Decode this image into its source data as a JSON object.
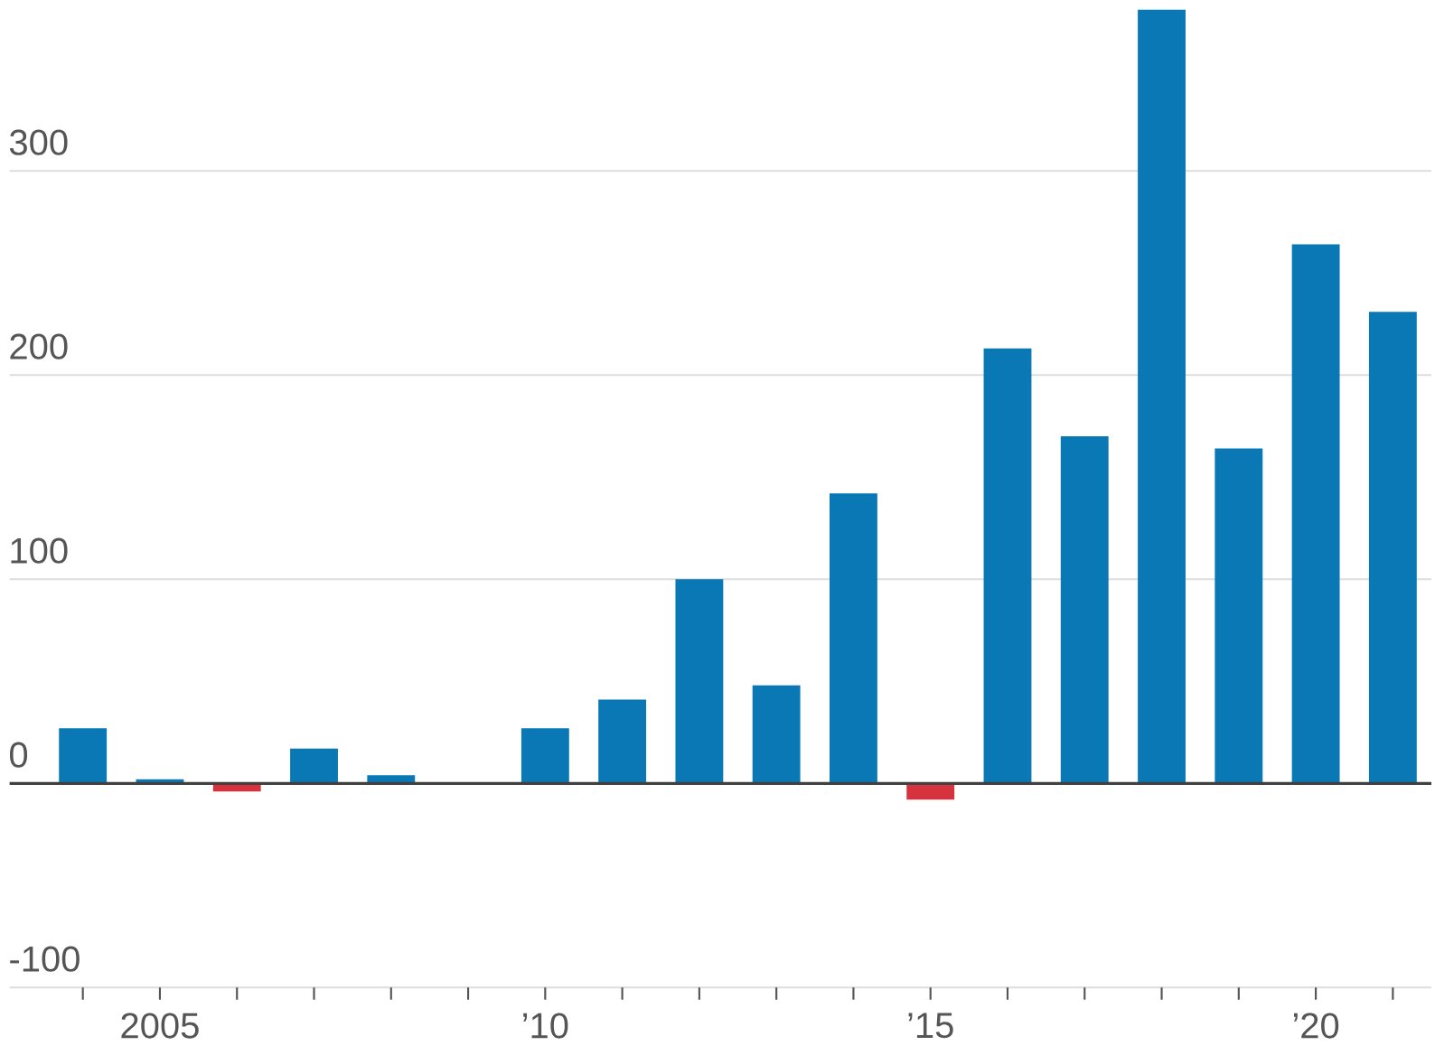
{
  "chart_data": {
    "type": "bar",
    "categories": [
      null,
      "2005",
      null,
      null,
      null,
      null,
      "’10",
      null,
      null,
      null,
      null,
      "’15",
      null,
      null,
      null,
      null,
      "’20",
      null
    ],
    "values": [
      27,
      2,
      -4,
      17,
      4,
      0,
      27,
      41,
      100,
      48,
      142,
      -8,
      213,
      170,
      379,
      164,
      264,
      231
    ],
    "colors": [
      "#0a78b4",
      "#0a78b4",
      "#d6333f",
      "#0a78b4",
      "#0a78b4",
      "#0a78b4",
      "#0a78b4",
      "#0a78b4",
      "#0a78b4",
      "#0a78b4",
      "#0a78b4",
      "#d6333f",
      "#0a78b4",
      "#0a78b4",
      "#0a78b4",
      "#0a78b4",
      "#0a78b4",
      "#0a78b4"
    ],
    "ylim": [
      -100,
      379
    ],
    "yticks": [
      -100,
      0,
      100,
      200,
      300
    ],
    "grid": "y"
  }
}
